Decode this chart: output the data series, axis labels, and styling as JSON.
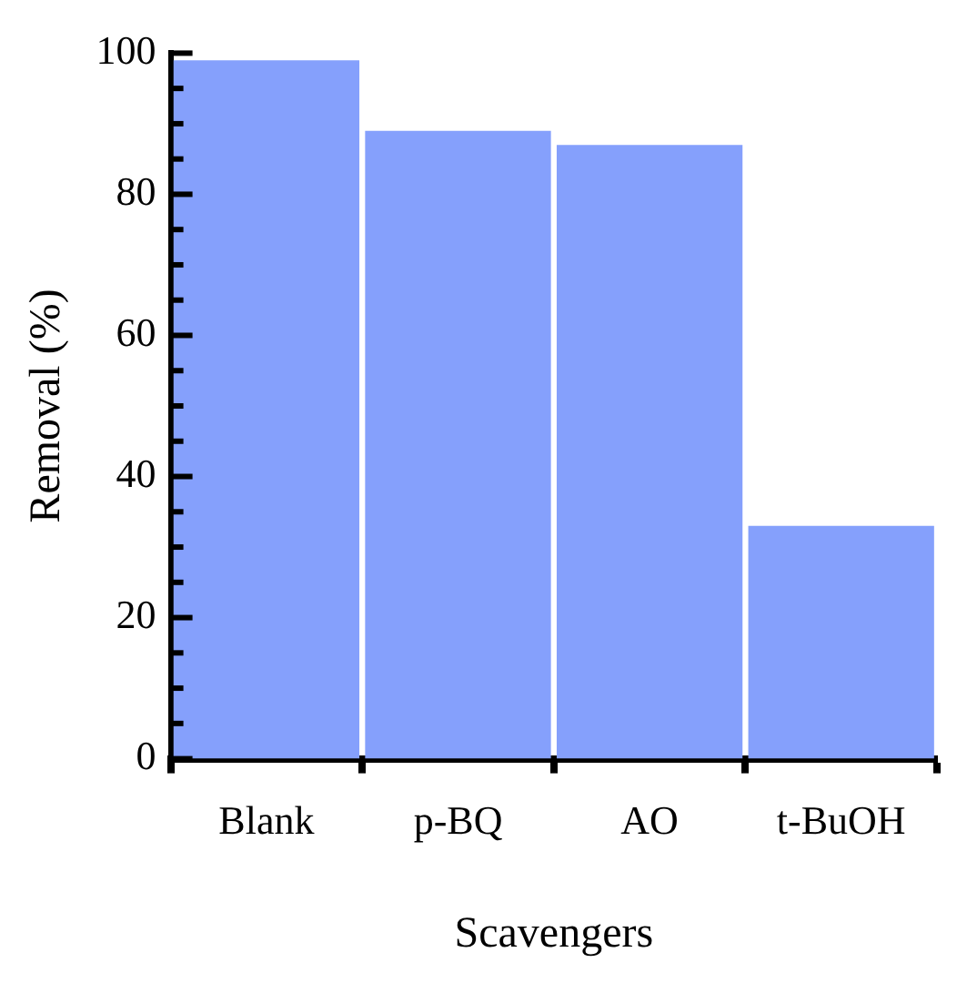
{
  "chart_data": {
    "type": "bar",
    "xlabel": "Scavengers",
    "ylabel": "Removal (%)",
    "categories": [
      "Blank",
      "p-BQ",
      "AO",
      "t-BuOH"
    ],
    "values": [
      99,
      89,
      87,
      33
    ],
    "color": "#85a0fc",
    "ylim": [
      0,
      100
    ],
    "yticks": [
      0,
      {
        "value": 5,
        "label": null
      },
      {
        "value": 10,
        "label": null
      },
      {
        "value": 15,
        "label": null
      },
      20,
      {
        "value": 25,
        "label": null
      },
      {
        "value": 30,
        "label": null
      },
      {
        "value": 35,
        "label": null
      },
      40,
      {
        "value": 45,
        "label": null
      },
      {
        "value": 50,
        "label": null
      },
      {
        "value": 55,
        "label": null
      },
      60,
      {
        "value": 65,
        "label": null
      },
      {
        "value": 70,
        "label": null
      },
      {
        "value": 75,
        "label": null
      },
      80,
      {
        "value": 85,
        "label": null
      },
      {
        "value": 90,
        "label": null
      },
      {
        "value": 95,
        "label": null
      },
      100
    ],
    "grid": false,
    "legend": false
  }
}
